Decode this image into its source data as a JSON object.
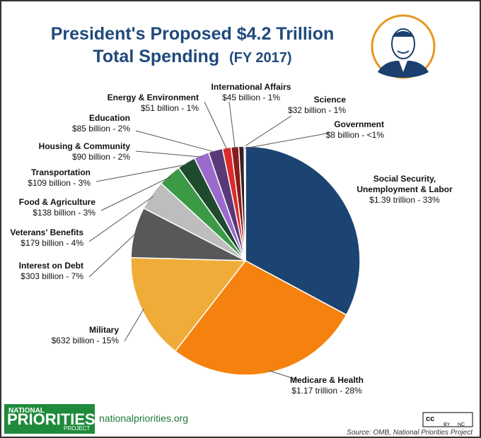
{
  "chart_data": {
    "type": "pie",
    "title": [
      "President's Proposed $4.2 Trillion",
      "Total Spending"
    ],
    "subtitle": "(FY 2017)",
    "categories": [
      "Social Security,\nUnemployment & Labor",
      "Medicare & Health",
      "Military",
      "Interest on Debt",
      "Veterans' Benefits",
      "Food & Agriculture",
      "Transportation",
      "Housing & Community",
      "Education",
      "Energy & Environment",
      "International Affairs",
      "Science",
      "Government"
    ],
    "values": [
      1390,
      1170,
      632,
      303,
      179,
      138,
      109,
      90,
      85,
      51,
      45,
      32,
      8
    ],
    "value_labels": [
      "$1.39 trillion - 33%",
      "$1.17 trillion - 28%",
      "$632 billion - 15%",
      "$303 billion - 7%",
      "$179 billion - 4%",
      "$138 billion - 3%",
      "$109 billion - 3%",
      "$90 billion - 2%",
      "$85 billion - 2%",
      "$51 billion - 1%",
      "$45 billion - 1%",
      "$32 billion - 1%",
      "$8 billion - <1%"
    ],
    "colors": [
      "#1b4473",
      "#f5820e",
      "#f0ac38",
      "#585858",
      "#bdbdbd",
      "#3c9a47",
      "#1f4a2d",
      "#9a6bcc",
      "#5a3978",
      "#db2b2b",
      "#8b1b1b",
      "#3c1f22",
      "#2aa7e0"
    ]
  },
  "footer": {
    "logo": [
      "NATIONAL",
      "PRIORITIES",
      "PROJECT"
    ],
    "url": "nationalpriorities.org",
    "license": [
      "cc",
      "BY",
      "NC"
    ],
    "source": "Source: OMB, National Priorities Project"
  }
}
